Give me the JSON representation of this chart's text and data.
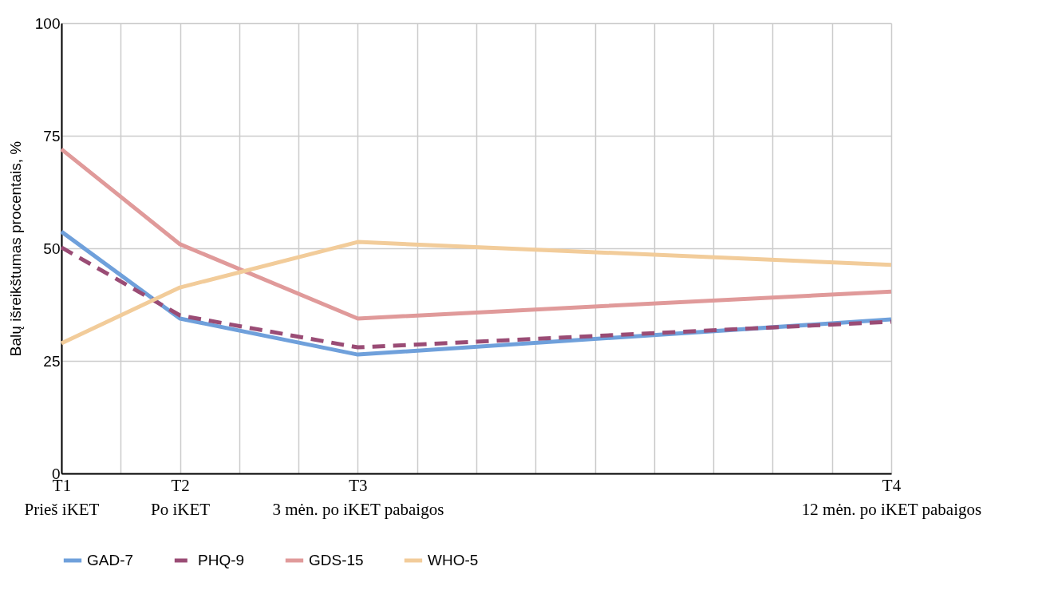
{
  "chart_data": {
    "type": "line",
    "ylabel": "Balų išreikštumas procentais, %",
    "categories": [
      "T1\nPrieš iKET",
      null,
      "T2\nPo iKET",
      null,
      null,
      "T3\n3 mėn. po iKET pabaigos",
      null,
      null,
      null,
      null,
      null,
      null,
      null,
      null,
      "T4\n12 mėn. po iKET pabaigos"
    ],
    "ylim": [
      0,
      100
    ],
    "yticks": [
      0,
      25,
      50,
      75,
      100
    ],
    "grid": true,
    "legend": "bottom",
    "marker": "none",
    "series": [
      {
        "name": "GAD-7",
        "color": "#6fa0db",
        "line_style": "solid",
        "values": [
          53.7,
          null,
          34.4,
          null,
          null,
          26.4,
          null,
          null,
          null,
          null,
          null,
          null,
          null,
          null,
          34.2
        ]
      },
      {
        "name": "PHQ-9",
        "color": "#9a4c75",
        "line_style": "dashed",
        "values": [
          50.2,
          null,
          35.1,
          null,
          null,
          28,
          null,
          null,
          null,
          null,
          null,
          null,
          null,
          null,
          33.7
        ]
      },
      {
        "name": "GDS-15",
        "color": "#e09a9a",
        "line_style": "solid",
        "values": [
          72,
          null,
          50.9,
          null,
          null,
          34.4,
          null,
          null,
          null,
          null,
          null,
          null,
          null,
          null,
          40.4
        ]
      },
      {
        "name": "WHO-5",
        "color": "#f2cc9a",
        "line_style": "solid",
        "values": [
          28.9,
          null,
          41.3,
          null,
          null,
          51.4,
          null,
          null,
          null,
          null,
          null,
          null,
          null,
          null,
          46.3
        ]
      }
    ]
  }
}
